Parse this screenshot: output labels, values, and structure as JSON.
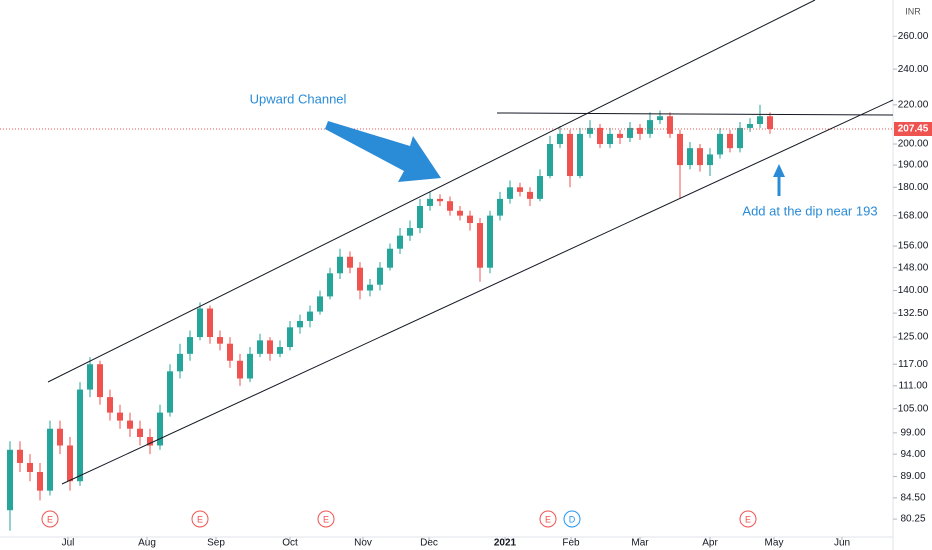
{
  "chart_data": {
    "type": "candlestick",
    "currency": "INR",
    "candles": [
      [
        82,
        97,
        78,
        95
      ],
      [
        95,
        97,
        90,
        92
      ],
      [
        92,
        94,
        88,
        90
      ],
      [
        90,
        92,
        84,
        86
      ],
      [
        86,
        102,
        85,
        100
      ],
      [
        100,
        102,
        94,
        96
      ],
      [
        96,
        98,
        86,
        88
      ],
      [
        88,
        112,
        87,
        110
      ],
      [
        110,
        119,
        108,
        117
      ],
      [
        117,
        118,
        106,
        108
      ],
      [
        108,
        110,
        102,
        104
      ],
      [
        104,
        106,
        100,
        102
      ],
      [
        102,
        104,
        98,
        100
      ],
      [
        100,
        102,
        96,
        98
      ],
      [
        98,
        100,
        94,
        96
      ],
      [
        96,
        106,
        95,
        104
      ],
      [
        104,
        117,
        103,
        115
      ],
      [
        115,
        123,
        113,
        120
      ],
      [
        120,
        127,
        118,
        125
      ],
      [
        125,
        136,
        124,
        134
      ],
      [
        134,
        135,
        123,
        125
      ],
      [
        125,
        127,
        121,
        123
      ],
      [
        123,
        125,
        116,
        118
      ],
      [
        118,
        120,
        111,
        113
      ],
      [
        113,
        122,
        112,
        120
      ],
      [
        120,
        126,
        119,
        124
      ],
      [
        124,
        125,
        118,
        120
      ],
      [
        120,
        124,
        119,
        122
      ],
      [
        122,
        130,
        121,
        128
      ],
      [
        128,
        132,
        126,
        130
      ],
      [
        130,
        135,
        128,
        133
      ],
      [
        133,
        140,
        132,
        138
      ],
      [
        138,
        148,
        137,
        146
      ],
      [
        146,
        155,
        144,
        152
      ],
      [
        152,
        154,
        146,
        148
      ],
      [
        148,
        150,
        137,
        140
      ],
      [
        140,
        144,
        138,
        142
      ],
      [
        142,
        150,
        140,
        148
      ],
      [
        148,
        157,
        147,
        155
      ],
      [
        155,
        163,
        153,
        160
      ],
      [
        160,
        166,
        158,
        163
      ],
      [
        163,
        175,
        161,
        172
      ],
      [
        172,
        178,
        170,
        175
      ],
      [
        175,
        177,
        172,
        174
      ],
      [
        174,
        176,
        168,
        170
      ],
      [
        170,
        172,
        166,
        168
      ],
      [
        168,
        170,
        162,
        165
      ],
      [
        165,
        167,
        143,
        148
      ],
      [
        148,
        170,
        146,
        168
      ],
      [
        168,
        178,
        166,
        175
      ],
      [
        175,
        183,
        173,
        180
      ],
      [
        180,
        182,
        176,
        178
      ],
      [
        178,
        180,
        172,
        175
      ],
      [
        175,
        188,
        174,
        185
      ],
      [
        185,
        204,
        184,
        200
      ],
      [
        200,
        209,
        198,
        205
      ],
      [
        205,
        207,
        180,
        185
      ],
      [
        185,
        208,
        184,
        205
      ],
      [
        205,
        212,
        203,
        208
      ],
      [
        208,
        210,
        198,
        200
      ],
      [
        200,
        208,
        198,
        205
      ],
      [
        205,
        207,
        200,
        203
      ],
      [
        203,
        211,
        201,
        208
      ],
      [
        208,
        210,
        202,
        205
      ],
      [
        205,
        216,
        203,
        212
      ],
      [
        212,
        217,
        210,
        214
      ],
      [
        214,
        216,
        203,
        205
      ],
      [
        205,
        207,
        175,
        190
      ],
      [
        190,
        201,
        188,
        198
      ],
      [
        198,
        200,
        187,
        190
      ],
      [
        190,
        198,
        185,
        195
      ],
      [
        195,
        208,
        193,
        205
      ],
      [
        205,
        207,
        196,
        198
      ],
      [
        198,
        211,
        196,
        208
      ],
      [
        208,
        213,
        206,
        210
      ],
      [
        210,
        220,
        208,
        214
      ],
      [
        214,
        216,
        205,
        207.45
      ]
    ],
    "up_color": "#26a69a",
    "down_color": "#ef5350",
    "last_price": 207.45,
    "log_scale": true,
    "grid": false,
    "ylim": [
      77.2,
      284
    ],
    "yticks": [
      80.25,
      {
        "value": 84.5,
        "label": "84.50"
      },
      {
        "value": 89,
        "label": "89.00"
      },
      {
        "value": 94,
        "label": "94.00"
      },
      {
        "value": 99,
        "label": "99.00"
      },
      {
        "value": 105,
        "label": "105.00"
      },
      {
        "value": 111,
        "label": "111.00"
      },
      {
        "value": 117,
        "label": "117.00"
      },
      {
        "value": 125,
        "label": "125.00"
      },
      {
        "value": 132.5,
        "label": "132.50"
      },
      {
        "value": 140,
        "label": "140.00"
      },
      {
        "value": 148,
        "label": "148.00"
      },
      {
        "value": 156,
        "label": "156.00"
      },
      {
        "value": 168,
        "label": "168.00"
      },
      {
        "value": 180,
        "label": "180.00"
      },
      {
        "value": 190,
        "label": "190.00"
      },
      {
        "value": 200,
        "label": "200.00"
      },
      {
        "value": 220,
        "label": "220.00"
      },
      {
        "value": 240,
        "label": "240.00"
      },
      {
        "value": 260,
        "label": "260.00"
      }
    ],
    "xlim": [
      -1,
      88.3
    ],
    "xticks": [
      {
        "value": 5.8,
        "label": "Jul"
      },
      {
        "value": 13.7,
        "label": "Aug"
      },
      {
        "value": 20.6,
        "label": "Sep"
      },
      {
        "value": 28,
        "label": "Oct"
      },
      {
        "value": 35.3,
        "label": "Nov"
      },
      {
        "value": 41.9,
        "label": "Dec"
      },
      {
        "value": 49.5,
        "label": "2021"
      },
      {
        "value": 56.1,
        "label": "Feb"
      },
      {
        "value": 63,
        "label": "Mar"
      },
      {
        "value": 70,
        "label": "Apr"
      },
      {
        "value": 76.4,
        "label": "May"
      },
      {
        "value": 83.2,
        "label": "Jun"
      }
    ],
    "events": [
      {
        "label": "E",
        "x": 4,
        "color": "#ef5350"
      },
      {
        "label": "E",
        "x": 19,
        "color": "#ef5350"
      },
      {
        "label": "E",
        "x": 31.6,
        "color": "#ef5350"
      },
      {
        "label": "E",
        "x": 53.8,
        "color": "#ef5350"
      },
      {
        "label": "D",
        "x": 56.2,
        "color": "#2196f3"
      },
      {
        "label": "E",
        "x": 73.8,
        "color": "#ef5350"
      }
    ],
    "annotations": [
      "Upward Channel",
      "Add at the dip near 193"
    ]
  }
}
